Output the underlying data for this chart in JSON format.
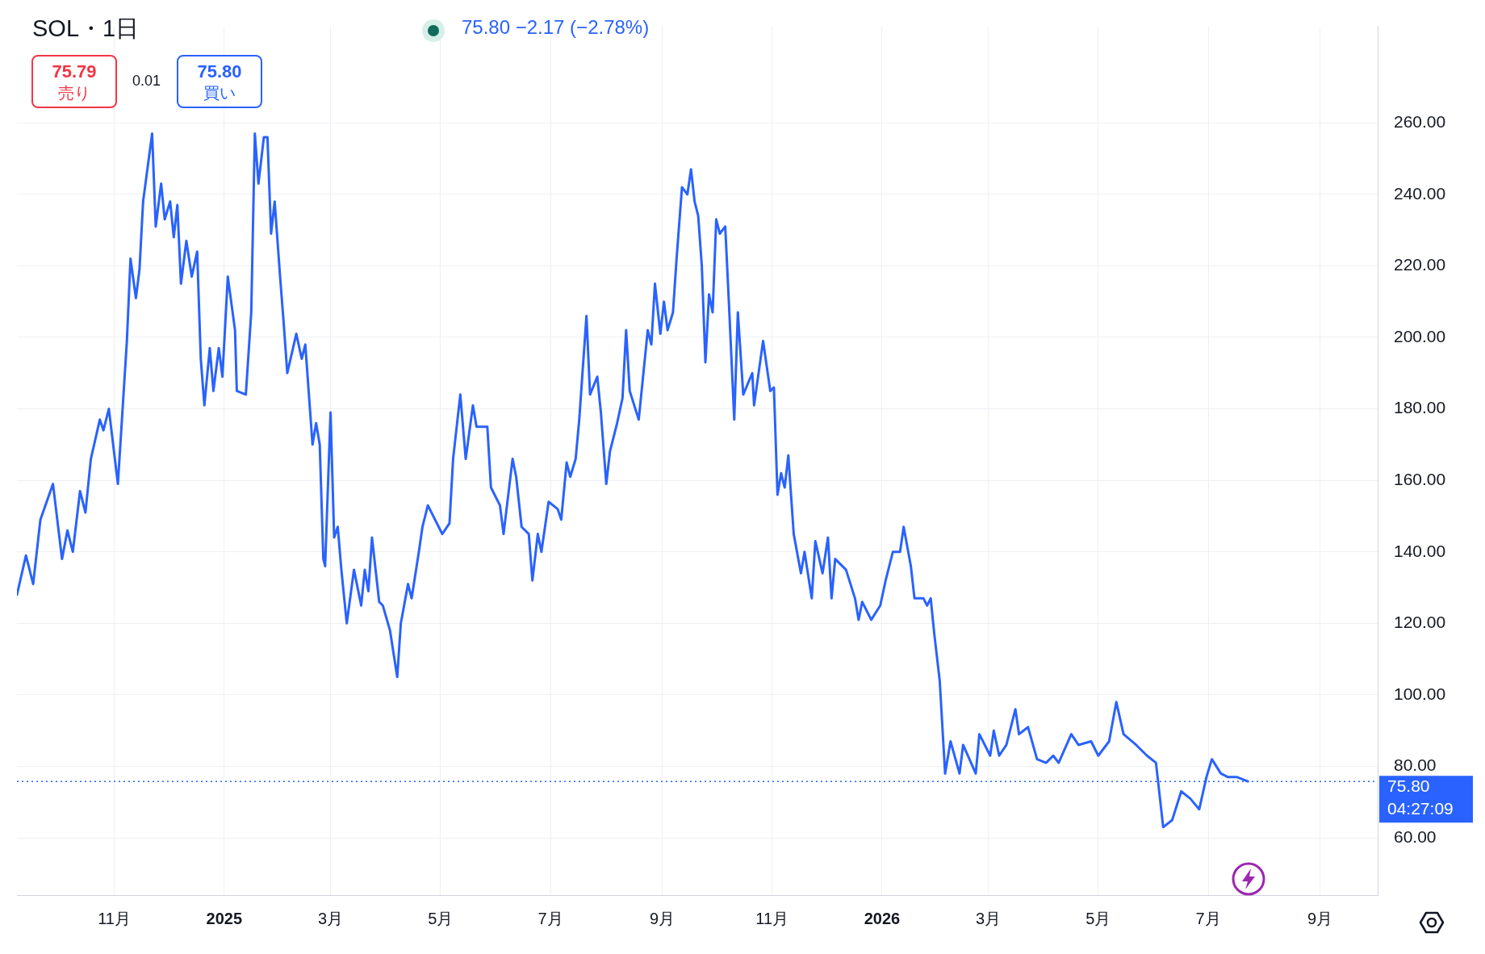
{
  "chart_data": {
    "type": "line",
    "title": "SOL・1日",
    "subtitle": "75.80 −2.17 (−2.78%)",
    "annotations": [
      "75.79\n売り",
      "0.01",
      "75.80\n買い",
      "04:27:09"
    ],
    "x": [
      "2024-09-08",
      "2024-09-13",
      "2024-09-17",
      "2024-09-21",
      "2024-09-28",
      "2024-10-03",
      "2024-10-06",
      "2024-10-09",
      "2024-10-13",
      "2024-10-16",
      "2024-10-19",
      "2024-10-24",
      "2024-10-26",
      "2024-10-29",
      "2024-11-03",
      "2024-11-08",
      "2024-11-10",
      "2024-11-13",
      "2024-11-15",
      "2024-11-17",
      "2024-11-22",
      "2024-11-24",
      "2024-11-27",
      "2024-11-29",
      "2024-12-02",
      "2024-12-04",
      "2024-12-06",
      "2024-12-08",
      "2024-12-11",
      "2024-12-14",
      "2024-12-17",
      "2024-12-19",
      "2024-12-21",
      "2024-12-24",
      "2024-12-26",
      "2024-12-29",
      "2024-12-31",
      "2025-01-03",
      "2025-01-07",
      "2025-01-08",
      "2025-01-13",
      "2025-01-16",
      "2025-01-18",
      "2025-01-20",
      "2025-01-23",
      "2025-01-25",
      "2025-01-27",
      "2025-01-29",
      "2025-02-01",
      "2025-02-03",
      "2025-02-05",
      "2025-02-10",
      "2025-02-13",
      "2025-02-15",
      "2025-02-19",
      "2025-02-21",
      "2025-02-23",
      "2025-02-25",
      "2025-02-26",
      "2025-03-01",
      "2025-03-03",
      "2025-03-05",
      "2025-03-07",
      "2025-03-10",
      "2025-03-14",
      "2025-03-18",
      "2025-03-20",
      "2025-03-22",
      "2025-03-24",
      "2025-03-28",
      "2025-03-30",
      "2025-04-03",
      "2025-04-07",
      "2025-04-09",
      "2025-04-13",
      "2025-04-15",
      "2025-04-19",
      "2025-04-21",
      "2025-04-24",
      "2025-04-30",
      "2025-05-02",
      "2025-05-06",
      "2025-05-08",
      "2025-05-12",
      "2025-05-15",
      "2025-05-19",
      "2025-05-21",
      "2025-05-27",
      "2025-05-29",
      "2025-06-03",
      "2025-06-05",
      "2025-06-10",
      "2025-06-12",
      "2025-06-15",
      "2025-06-19",
      "2025-06-21",
      "2025-06-24",
      "2025-06-26",
      "2025-06-30",
      "2025-07-05",
      "2025-07-07",
      "2025-07-10",
      "2025-07-12",
      "2025-07-15",
      "2025-07-17",
      "2025-07-21",
      "2025-07-23",
      "2025-07-27",
      "2025-07-29",
      "2025-08-01",
      "2025-08-03",
      "2025-08-07",
      "2025-08-10",
      "2025-08-12",
      "2025-08-14",
      "2025-08-19",
      "2025-08-24",
      "2025-08-26",
      "2025-08-28",
      "2025-08-31",
      "2025-09-02",
      "2025-09-04",
      "2025-09-07",
      "2025-09-09",
      "2025-09-12",
      "2025-09-15",
      "2025-09-17",
      "2025-09-19",
      "2025-09-21",
      "2025-09-23",
      "2025-09-25",
      "2025-09-27",
      "2025-09-29",
      "2025-10-01",
      "2025-10-03",
      "2025-10-06",
      "2025-10-08",
      "2025-10-11",
      "2025-10-13",
      "2025-10-16",
      "2025-10-21",
      "2025-10-22",
      "2025-10-27",
      "2025-10-31",
      "2025-11-02",
      "2025-11-04",
      "2025-11-06",
      "2025-11-08",
      "2025-11-10",
      "2025-11-13",
      "2025-11-17",
      "2025-11-19",
      "2025-11-23",
      "2025-11-25",
      "2025-11-29",
      "2025-12-02",
      "2025-12-04",
      "2025-12-06",
      "2025-12-12",
      "2025-12-17",
      "2025-12-19",
      "2025-12-21",
      "2025-12-26",
      "2025-12-31",
      "2026-01-03",
      "2026-01-07",
      "2026-01-11",
      "2026-01-13",
      "2026-01-17",
      "2026-01-19",
      "2026-01-24",
      "2026-01-26",
      "2026-01-28",
      "2026-01-30",
      "2026-02-02",
      "2026-02-05",
      "2026-02-08",
      "2026-02-13",
      "2026-02-15",
      "2026-02-22",
      "2026-02-24",
      "2026-03-02",
      "2026-03-04",
      "2026-03-07",
      "2026-03-11",
      "2026-03-16",
      "2026-03-18",
      "2026-03-23",
      "2026-03-28",
      "2026-04-02",
      "2026-04-06",
      "2026-04-09",
      "2026-04-16",
      "2026-04-20",
      "2026-04-27",
      "2026-05-01",
      "2026-05-07",
      "2026-05-11",
      "2026-05-15",
      "2026-05-22",
      "2026-05-28",
      "2026-06-02",
      "2026-06-06",
      "2026-06-11",
      "2026-06-16",
      "2026-06-21",
      "2026-06-26",
      "2026-06-30",
      "2026-07-03",
      "2026-07-08",
      "2026-07-12",
      "2026-07-17",
      "2026-07-23"
    ],
    "series": [
      {
        "color": "#2962ff",
        "values": [
          128,
          139,
          131,
          149,
          159,
          138,
          146,
          140,
          157,
          151,
          166,
          177,
          174,
          180,
          159,
          199,
          222,
          211,
          219,
          238,
          257,
          231,
          243,
          233,
          238,
          228,
          237,
          215,
          227,
          217,
          224,
          194,
          181,
          197,
          185,
          197,
          189,
          217,
          202,
          185,
          184,
          207,
          257,
          243,
          256,
          256,
          229,
          238,
          217,
          204,
          190,
          201,
          194,
          198,
          170,
          176,
          170,
          138,
          136,
          179,
          144,
          147,
          135,
          120,
          135,
          125,
          135,
          129,
          144,
          126,
          125,
          118,
          105,
          120,
          131,
          127,
          140,
          147,
          153,
          147,
          145,
          148,
          166,
          184,
          166,
          181,
          175,
          175,
          158,
          153,
          145,
          166,
          161,
          147,
          145,
          132,
          145,
          140,
          154,
          152,
          149,
          165,
          161,
          166,
          177,
          206,
          184,
          189,
          179,
          159,
          168,
          176,
          183,
          202,
          185,
          177,
          202,
          198,
          215,
          201,
          210,
          202,
          207,
          222,
          242,
          240,
          247,
          238,
          234,
          220,
          193,
          212,
          207,
          233,
          229,
          231,
          210,
          177,
          207,
          184,
          190,
          181,
          199,
          185,
          186,
          156,
          162,
          158,
          167,
          145,
          134,
          140,
          127,
          143,
          134,
          144,
          127,
          138,
          135,
          127,
          121,
          126,
          121,
          125,
          132,
          140,
          140,
          147,
          136,
          127,
          127,
          125,
          127,
          117,
          104,
          78,
          87,
          78,
          86,
          78,
          89,
          83,
          90,
          83,
          86,
          96,
          89,
          91,
          82,
          81,
          83,
          81,
          89,
          86,
          87,
          83,
          87,
          98,
          89,
          86,
          83,
          81,
          63,
          65,
          73,
          71,
          68,
          77,
          82,
          78,
          77,
          77,
          75.8
        ]
      }
    ],
    "xlim": [
      "2024-09-08",
      "2026-10-03"
    ],
    "xticks": [
      {
        "value": "2024-11-01",
        "label": "11月"
      },
      {
        "value": "2025-01-01",
        "label": "2025"
      },
      {
        "value": "2025-03-01",
        "label": "3月"
      },
      {
        "value": "2025-05-01",
        "label": "5月"
      },
      {
        "value": "2025-07-01",
        "label": "7月"
      },
      {
        "value": "2025-09-01",
        "label": "9月"
      },
      {
        "value": "2025-11-01",
        "label": "11月"
      },
      {
        "value": "2026-01-01",
        "label": "2026"
      },
      {
        "value": "2026-03-01",
        "label": "3月"
      },
      {
        "value": "2026-05-01",
        "label": "5月"
      },
      {
        "value": "2026-07-01",
        "label": "7月"
      },
      {
        "value": "2026-09-01",
        "label": "9月"
      }
    ],
    "ylim": [
      44,
      287
    ],
    "yticks": [
      {
        "value": 60,
        "label": "60.00"
      },
      {
        "value": 80,
        "label": "80.00"
      },
      {
        "value": 100,
        "label": "100.00"
      },
      {
        "value": 120,
        "label": "120.00"
      },
      {
        "value": 140,
        "label": "140.00"
      },
      {
        "value": 160,
        "label": "160.00"
      },
      {
        "value": 180,
        "label": "180.00"
      },
      {
        "value": 200,
        "label": "200.00"
      },
      {
        "value": 220,
        "label": "220.00"
      },
      {
        "value": 240,
        "label": "240.00"
      },
      {
        "value": 260,
        "label": "260.00"
      }
    ],
    "ref_lines": [
      {
        "axis": "y",
        "value": 75.8,
        "label": "75.80",
        "color": "#2962ff",
        "line_style": "dotted"
      }
    ],
    "grid": true,
    "legend": false,
    "marker": "none",
    "line_style": "solid"
  }
}
